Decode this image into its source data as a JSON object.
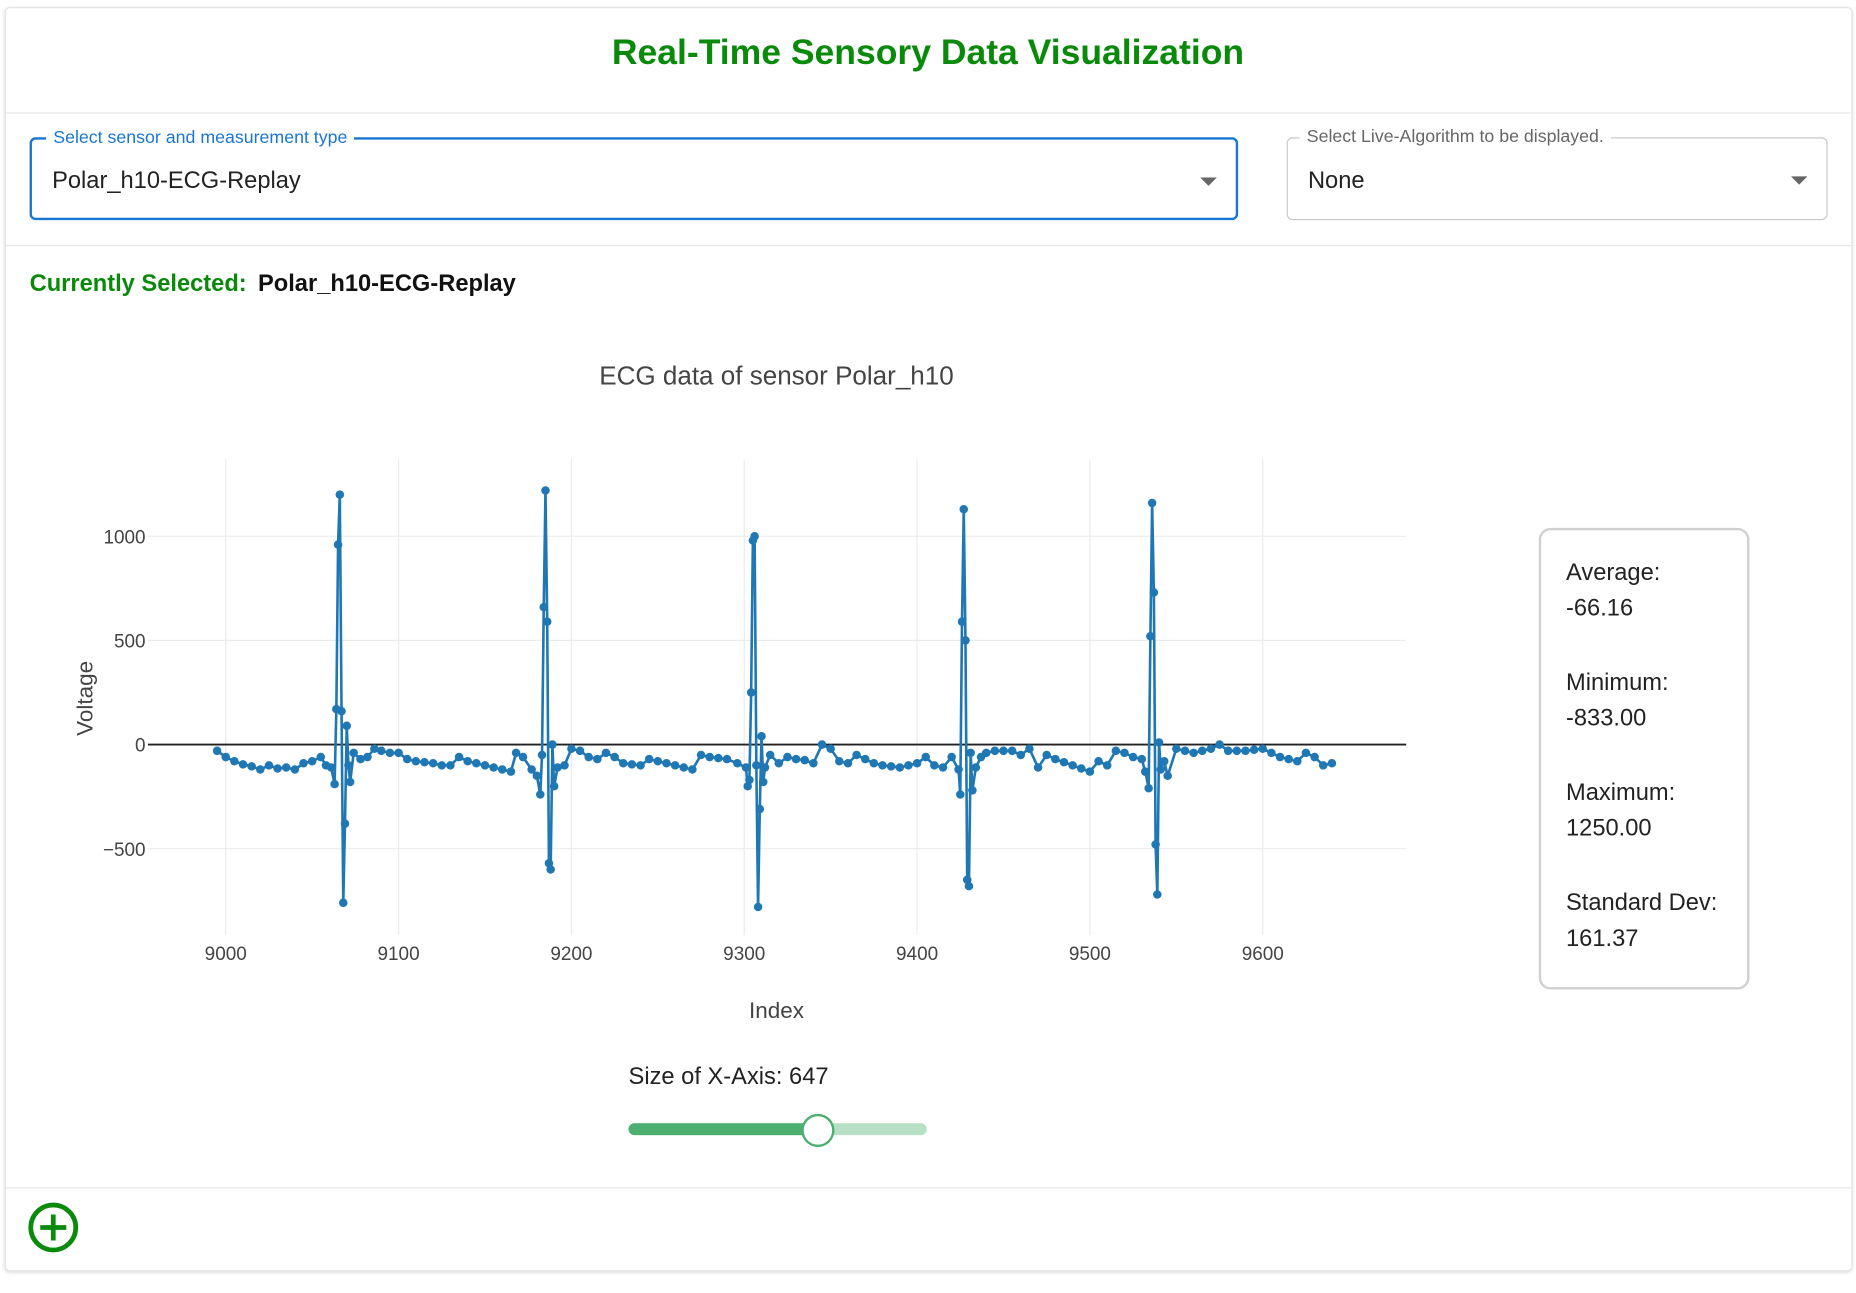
{
  "header": {
    "title": "Real-Time Sensory Data Visualization"
  },
  "controls": {
    "sensor_select": {
      "label": "Select sensor and measurement type",
      "value": "Polar_h10-ECG-Replay"
    },
    "algorithm_select": {
      "label": "Select Live-Algorithm to be displayed.",
      "value": "None"
    }
  },
  "current": {
    "label": "Currently Selected:",
    "value": "Polar_h10-ECG-Replay"
  },
  "chart_data": {
    "type": "line",
    "title": "ECG data of sensor Polar_h10",
    "xlabel": "Index",
    "ylabel": "Voltage",
    "color": "#1f77b4",
    "grid": true,
    "zeroline": true,
    "markers": true,
    "xlim": [
      8955,
      9683
    ],
    "ylim": [
      -915,
      1370
    ],
    "xticks": [
      9000,
      9100,
      9200,
      9300,
      9400,
      9500,
      9600
    ],
    "yticks": [
      {
        "value": -500,
        "label": "−500"
      },
      0,
      500,
      1000
    ],
    "x": [
      8995,
      9000,
      9005,
      9010,
      9015,
      9020,
      9025,
      9030,
      9035,
      9040,
      9045,
      9050,
      9055,
      9058,
      9061,
      9063,
      9064,
      9065,
      9066,
      9067,
      9068,
      9069,
      9070,
      9071,
      9072,
      9074,
      9078,
      9082,
      9086,
      9090,
      9095,
      9100,
      9105,
      9110,
      9115,
      9120,
      9125,
      9130,
      9135,
      9140,
      9145,
      9150,
      9155,
      9160,
      9165,
      9168,
      9172,
      9177,
      9180,
      9182,
      9183,
      9184,
      9185,
      9186,
      9187,
      9188,
      9189,
      9190,
      9192,
      9196,
      9200,
      9205,
      9210,
      9215,
      9220,
      9225,
      9230,
      9235,
      9240,
      9245,
      9250,
      9255,
      9260,
      9265,
      9270,
      9275,
      9280,
      9285,
      9290,
      9296,
      9301,
      9302,
      9303,
      9304,
      9305,
      9306,
      9307,
      9308,
      9309,
      9310,
      9311,
      9312,
      9315,
      9320,
      9325,
      9330,
      9335,
      9340,
      9345,
      9350,
      9355,
      9360,
      9365,
      9370,
      9375,
      9380,
      9385,
      9390,
      9395,
      9400,
      9405,
      9410,
      9415,
      9420,
      9424,
      9425,
      9426,
      9427,
      9428,
      9429,
      9430,
      9431,
      9432,
      9434,
      9437,
      9440,
      9445,
      9450,
      9455,
      9460,
      9465,
      9470,
      9475,
      9480,
      9485,
      9490,
      9495,
      9500,
      9505,
      9510,
      9515,
      9520,
      9525,
      9530,
      9532,
      9534,
      9535,
      9536,
      9537,
      9538,
      9539,
      9540,
      9541,
      9543,
      9545,
      9550,
      9555,
      9560,
      9565,
      9570,
      9575,
      9580,
      9585,
      9590,
      9595,
      9600,
      9605,
      9610,
      9615,
      9620,
      9625,
      9630,
      9635,
      9640
    ],
    "values": [
      -30,
      -60,
      -80,
      -95,
      -105,
      -120,
      -100,
      -115,
      -110,
      -120,
      -90,
      -80,
      -60,
      -100,
      -110,
      -190,
      170,
      960,
      1200,
      160,
      -760,
      -380,
      90,
      -100,
      -180,
      -40,
      -70,
      -60,
      -20,
      -30,
      -40,
      -40,
      -70,
      -80,
      -85,
      -90,
      -100,
      -100,
      -60,
      -80,
      -90,
      -100,
      -110,
      -120,
      -130,
      -40,
      -60,
      -120,
      -150,
      -240,
      -50,
      660,
      1220,
      590,
      -570,
      -600,
      0,
      -200,
      -110,
      -100,
      -20,
      -30,
      -60,
      -70,
      -40,
      -60,
      -90,
      -95,
      -100,
      -70,
      -80,
      -90,
      -100,
      -110,
      -120,
      -50,
      -60,
      -65,
      -70,
      -90,
      -110,
      -200,
      -170,
      250,
      980,
      1000,
      -100,
      -780,
      -310,
      40,
      -180,
      -110,
      -50,
      -90,
      -60,
      -70,
      -75,
      -90,
      0,
      -20,
      -80,
      -90,
      -50,
      -70,
      -90,
      -100,
      -105,
      -110,
      -100,
      -90,
      -60,
      -100,
      -110,
      -60,
      -120,
      -240,
      590,
      1130,
      500,
      -650,
      -680,
      -40,
      -220,
      -110,
      -60,
      -40,
      -30,
      -30,
      -30,
      -50,
      -20,
      -110,
      -50,
      -70,
      -85,
      -100,
      -115,
      -130,
      -80,
      -100,
      -30,
      -40,
      -60,
      -70,
      -130,
      -210,
      520,
      1160,
      730,
      -480,
      -720,
      10,
      -120,
      -80,
      -150,
      -20,
      -30,
      -40,
      -30,
      -20,
      0,
      -30,
      -30,
      -30,
      -25,
      -20,
      -40,
      -60,
      -70,
      -80,
      -40,
      -60,
      -100,
      -90
    ]
  },
  "stats": {
    "average_label": "Average:",
    "average": "-66.16",
    "minimum_label": "Minimum:",
    "minimum": "-833.00",
    "maximum_label": "Maximum:",
    "maximum": "1250.00",
    "std_label": "Standard Dev:",
    "std": "161.37"
  },
  "slider": {
    "label": "Size of X-Axis:",
    "value": 647
  }
}
